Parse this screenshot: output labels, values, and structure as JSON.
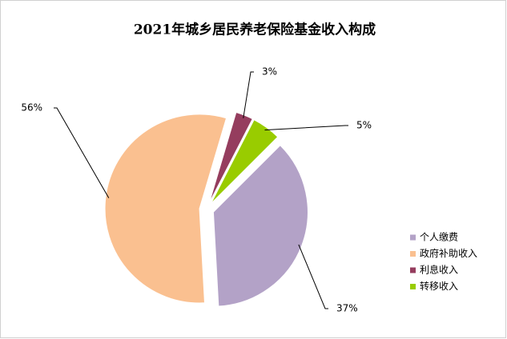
{
  "chart_data": {
    "type": "pie",
    "title": "2021年城乡居民养老保险基金收入构成",
    "categories": [
      "个人缴费",
      "政府补助收入",
      "利息收入",
      "转移收入"
    ],
    "values": [
      37,
      56,
      3,
      5
    ],
    "value_labels": [
      "37%",
      "56%",
      "3%",
      "5%"
    ],
    "colors": [
      "#b3a2c7",
      "#fac090",
      "#953d5e",
      "#99cc00"
    ],
    "legend": "right"
  }
}
